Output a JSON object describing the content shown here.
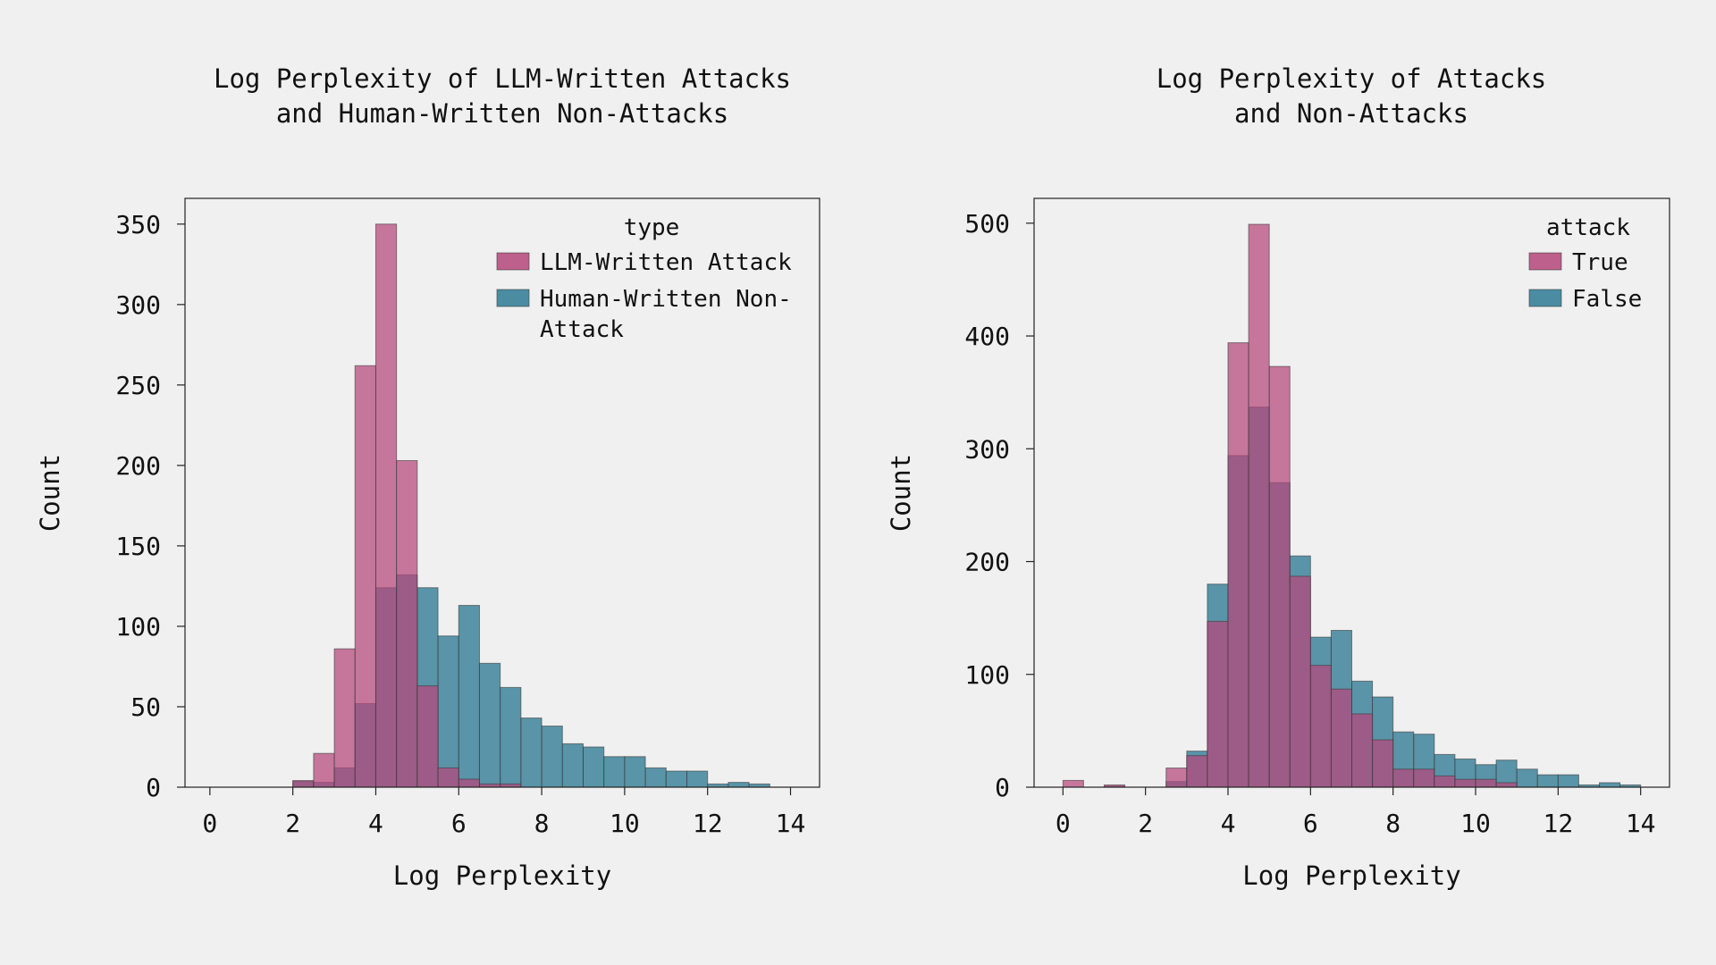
{
  "colors": {
    "attack": "#b5477a",
    "non_attack": "#2e7a94",
    "background": "#f0f0f0",
    "edge": "#3a3a3a"
  },
  "chart_data": [
    {
      "type": "histogram",
      "title_lines": [
        "Log Perplexity of LLM-Written Attacks",
        "and Human-Written Non-Attacks"
      ],
      "xlabel": "Log Perplexity",
      "ylabel": "Count",
      "xlim": [
        -0.6,
        14.7
      ],
      "ylim": [
        0,
        366
      ],
      "xticks": [
        0,
        2,
        4,
        6,
        8,
        10,
        12,
        14
      ],
      "yticks": [
        0,
        50,
        100,
        150,
        200,
        250,
        300,
        350
      ],
      "bin_start": 2.0,
      "bin_width": 0.5,
      "legend_title": "type",
      "legend_position": "top-right",
      "grid": false,
      "series": [
        {
          "name": "LLM-Written Attack",
          "color_key": "attack",
          "values": [
            4,
            21,
            86,
            262,
            350,
            203,
            63,
            12,
            5,
            2,
            2,
            0,
            0,
            0,
            0,
            0,
            0,
            0,
            0,
            0,
            0,
            0,
            0
          ]
        },
        {
          "name_lines": [
            "Human-Written Non-",
            "Attack"
          ],
          "color_key": "non_attack",
          "values": [
            4,
            3,
            12,
            52,
            124,
            132,
            124,
            94,
            113,
            77,
            62,
            43,
            38,
            27,
            25,
            19,
            19,
            12,
            10,
            10,
            2,
            3,
            2
          ]
        }
      ]
    },
    {
      "type": "histogram",
      "title_lines": [
        "Log Perplexity of Attacks",
        "and Non-Attacks"
      ],
      "xlabel": "Log Perplexity",
      "ylabel": "Count",
      "xlim": [
        -0.7,
        14.7
      ],
      "ylim": [
        0,
        522
      ],
      "xticks": [
        0,
        2,
        4,
        6,
        8,
        10,
        12,
        14
      ],
      "yticks": [
        0,
        100,
        200,
        300,
        400,
        500
      ],
      "bin_start": 0.0,
      "bin_width": 0.5,
      "legend_title": "attack",
      "legend_position": "top-right",
      "grid": false,
      "series": [
        {
          "name": "True",
          "color_key": "attack",
          "values": [
            6,
            0,
            2,
            0,
            0,
            17,
            28,
            147,
            394,
            499,
            373,
            187,
            108,
            87,
            65,
            42,
            16,
            16,
            10,
            7,
            7,
            4,
            0,
            0,
            0,
            0,
            0,
            0
          ]
        },
        {
          "name": "False",
          "color_key": "non_attack",
          "values": [
            0,
            0,
            1,
            0,
            0,
            5,
            32,
            180,
            294,
            337,
            270,
            205,
            133,
            139,
            94,
            80,
            49,
            47,
            29,
            25,
            20,
            24,
            16,
            11,
            11,
            2,
            4,
            2
          ]
        }
      ]
    }
  ]
}
